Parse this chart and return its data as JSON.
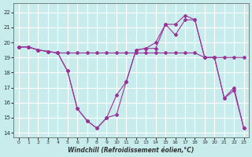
{
  "xlabel": "Windchill (Refroidissement éolien,°C)",
  "background_color": "#c8ecec",
  "line_color": "#993399",
  "grid_color": "#ffffff",
  "xlim": [
    -0.5,
    23.5
  ],
  "ylim": [
    13.7,
    22.6
  ],
  "yticks": [
    14,
    15,
    16,
    17,
    18,
    19,
    20,
    21,
    22
  ],
  "xticks": [
    0,
    1,
    2,
    3,
    4,
    5,
    6,
    7,
    8,
    9,
    10,
    11,
    12,
    13,
    14,
    15,
    16,
    17,
    18,
    19,
    20,
    21,
    22,
    23
  ],
  "line_A_x": [
    0,
    1,
    2,
    3,
    4,
    5,
    6,
    7,
    8,
    9,
    10,
    11,
    12,
    13,
    14,
    15,
    16,
    17,
    18,
    19,
    20,
    21,
    22,
    23
  ],
  "line_A_y": [
    19.7,
    19.7,
    19.5,
    19.4,
    19.3,
    19.3,
    19.3,
    19.3,
    19.3,
    19.3,
    19.3,
    19.3,
    19.3,
    19.3,
    19.3,
    19.3,
    19.3,
    19.3,
    19.3,
    19.0,
    19.0,
    19.0,
    19.0,
    19.0
  ],
  "line_B_x": [
    0,
    1,
    2,
    3,
    4,
    5,
    6,
    7,
    8,
    9,
    10,
    11,
    12,
    13,
    14,
    15,
    16,
    17,
    18,
    19,
    20,
    21,
    22,
    23
  ],
  "line_B_y": [
    19.7,
    19.7,
    19.5,
    19.4,
    19.3,
    18.1,
    15.6,
    14.8,
    14.3,
    15.0,
    16.5,
    17.4,
    19.5,
    19.6,
    19.6,
    21.2,
    20.5,
    21.5,
    21.5,
    19.0,
    19.0,
    16.3,
    16.8,
    14.3
  ],
  "line_C_x": [
    0,
    1,
    2,
    3,
    4,
    5,
    6,
    7,
    8,
    9,
    10,
    11,
    12,
    13,
    14,
    15,
    16,
    17,
    18,
    19,
    20,
    21,
    22,
    23
  ],
  "line_C_y": [
    19.7,
    19.7,
    19.5,
    19.4,
    19.3,
    18.1,
    15.6,
    14.8,
    14.3,
    15.0,
    15.2,
    17.4,
    19.5,
    19.6,
    20.0,
    21.2,
    21.2,
    21.8,
    21.5,
    19.0,
    19.0,
    16.3,
    17.0,
    14.3
  ]
}
